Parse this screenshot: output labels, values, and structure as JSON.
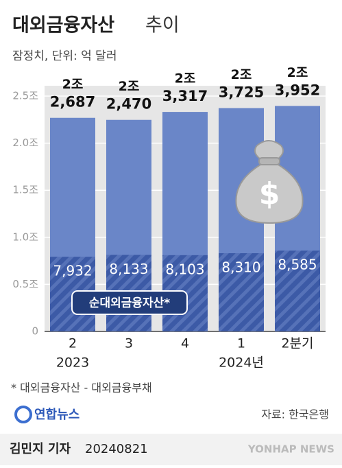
{
  "chart_data": {
    "type": "bar",
    "title": [
      "대외금융자산",
      "추이"
    ],
    "subtitle": "잠정치, 단위: 억 달러",
    "categories": [
      "2",
      "3",
      "4",
      "1",
      "2분기"
    ],
    "category_years": [
      "2023",
      null,
      null,
      "2024년",
      null
    ],
    "series": [
      {
        "color": "#6a86c8",
        "values": [
          2.2687,
          2.247,
          2.3317,
          2.3725,
          2.3952
        ],
        "value_labels": [
          [
            "2조",
            "2,687"
          ],
          [
            "2조",
            "2,470"
          ],
          [
            "2조",
            "3,317"
          ],
          [
            "2조",
            "3,725"
          ],
          [
            "2조",
            "3,952"
          ]
        ]
      },
      {
        "name": "순대외금융자산*",
        "color": "#3c5aa6",
        "values": [
          0.7932,
          0.8133,
          0.8103,
          0.831,
          0.8585
        ],
        "value_labels": [
          "7,932",
          "8,133",
          "8,103",
          "8,310",
          "8,585"
        ]
      }
    ],
    "ylim": [
      0,
      2.5
    ],
    "yticks": [
      0,
      {
        "value": 0.5,
        "label": "0.5조"
      },
      {
        "value": 1,
        "label": "1.0조"
      },
      {
        "value": 1.5,
        "label": "1.5조"
      },
      {
        "value": 2,
        "label": "2.0조"
      },
      {
        "value": 2.5,
        "label": "2.5조"
      }
    ],
    "grid": true,
    "footnote": "* 대외금융자산 - 대외금융부채",
    "logo": "연합뉴스",
    "source": "자료: 한국은행",
    "author": "김민지 기자",
    "date": "20240821",
    "watermark": "YONHAP NEWS"
  }
}
